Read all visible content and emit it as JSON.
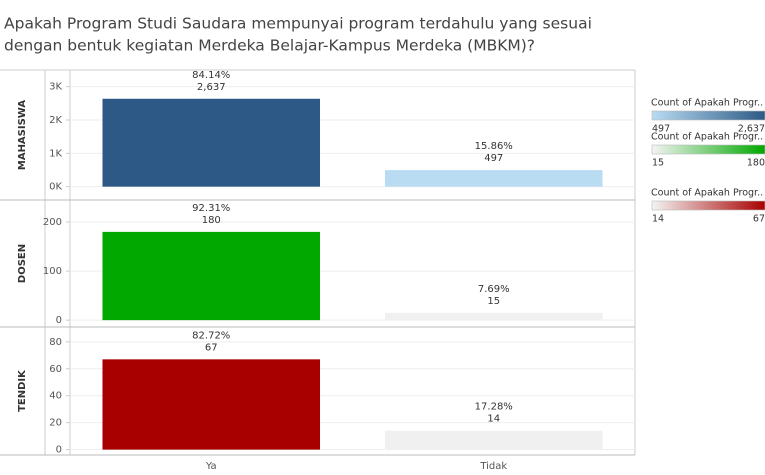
{
  "title": [
    "Apakah Program Studi Saudara mempunyai program terdahulu yang sesuai",
    "dengan bentuk kegiatan Merdeka Belajar-Kampus Merdeka (MBKM)?"
  ],
  "categories": [
    "Ya",
    "Tidak"
  ],
  "chart_data": [
    {
      "type": "bar",
      "label": "MAHASISWA",
      "values": [
        2637,
        497
      ],
      "value_labels": [
        "2,637",
        "497"
      ],
      "percents": [
        84.14,
        15.86
      ],
      "percent_labels": [
        "84.14%",
        "15.86%"
      ],
      "colors": [
        "#2c5985",
        "#b9dcf2"
      ],
      "ylim": [
        -400,
        3500
      ],
      "yticks": [
        {
          "value": 0,
          "label": "0K"
        },
        {
          "value": 1000,
          "label": "1K"
        },
        {
          "value": 2000,
          "label": "2K"
        },
        {
          "value": 3000,
          "label": "3K"
        }
      ],
      "grid": true,
      "legend": {
        "title": "Count of Apakah Progr..",
        "colors": [
          "#b9dcf2",
          "#2c5985"
        ],
        "ticks": [
          497,
          {
            "value": 2637,
            "label": "2,637"
          }
        ]
      }
    },
    {
      "type": "bar",
      "label": "DOSEN",
      "values": [
        180,
        15
      ],
      "percents": [
        92.31,
        7.69
      ],
      "percent_labels": [
        "92.31%",
        "7.69%"
      ],
      "colors": [
        "#00a800",
        "#f0f0f0"
      ],
      "ylim": [
        -14,
        245
      ],
      "yticks": [
        0,
        100,
        200
      ],
      "grid": true,
      "legend": {
        "title": "Count of Apakah Progr..",
        "colors": [
          "#f4f4f4",
          "#00a800"
        ],
        "ticks": [
          15,
          180
        ]
      }
    },
    {
      "type": "bar",
      "label": "TENDIK",
      "values": [
        67,
        14
      ],
      "percents": [
        82.72,
        17.28
      ],
      "percent_labels": [
        "82.72%",
        "17.28%"
      ],
      "colors": [
        "#a80000",
        "#f0f0f0"
      ],
      "ylim": [
        -4,
        91
      ],
      "yticks": [
        0,
        20,
        40,
        60,
        80
      ],
      "grid": true,
      "legend": {
        "title": "Count of Apakah Progr..",
        "colors": [
          "#f4f4f4",
          "#a80000"
        ],
        "ticks": [
          14,
          67
        ]
      }
    }
  ]
}
